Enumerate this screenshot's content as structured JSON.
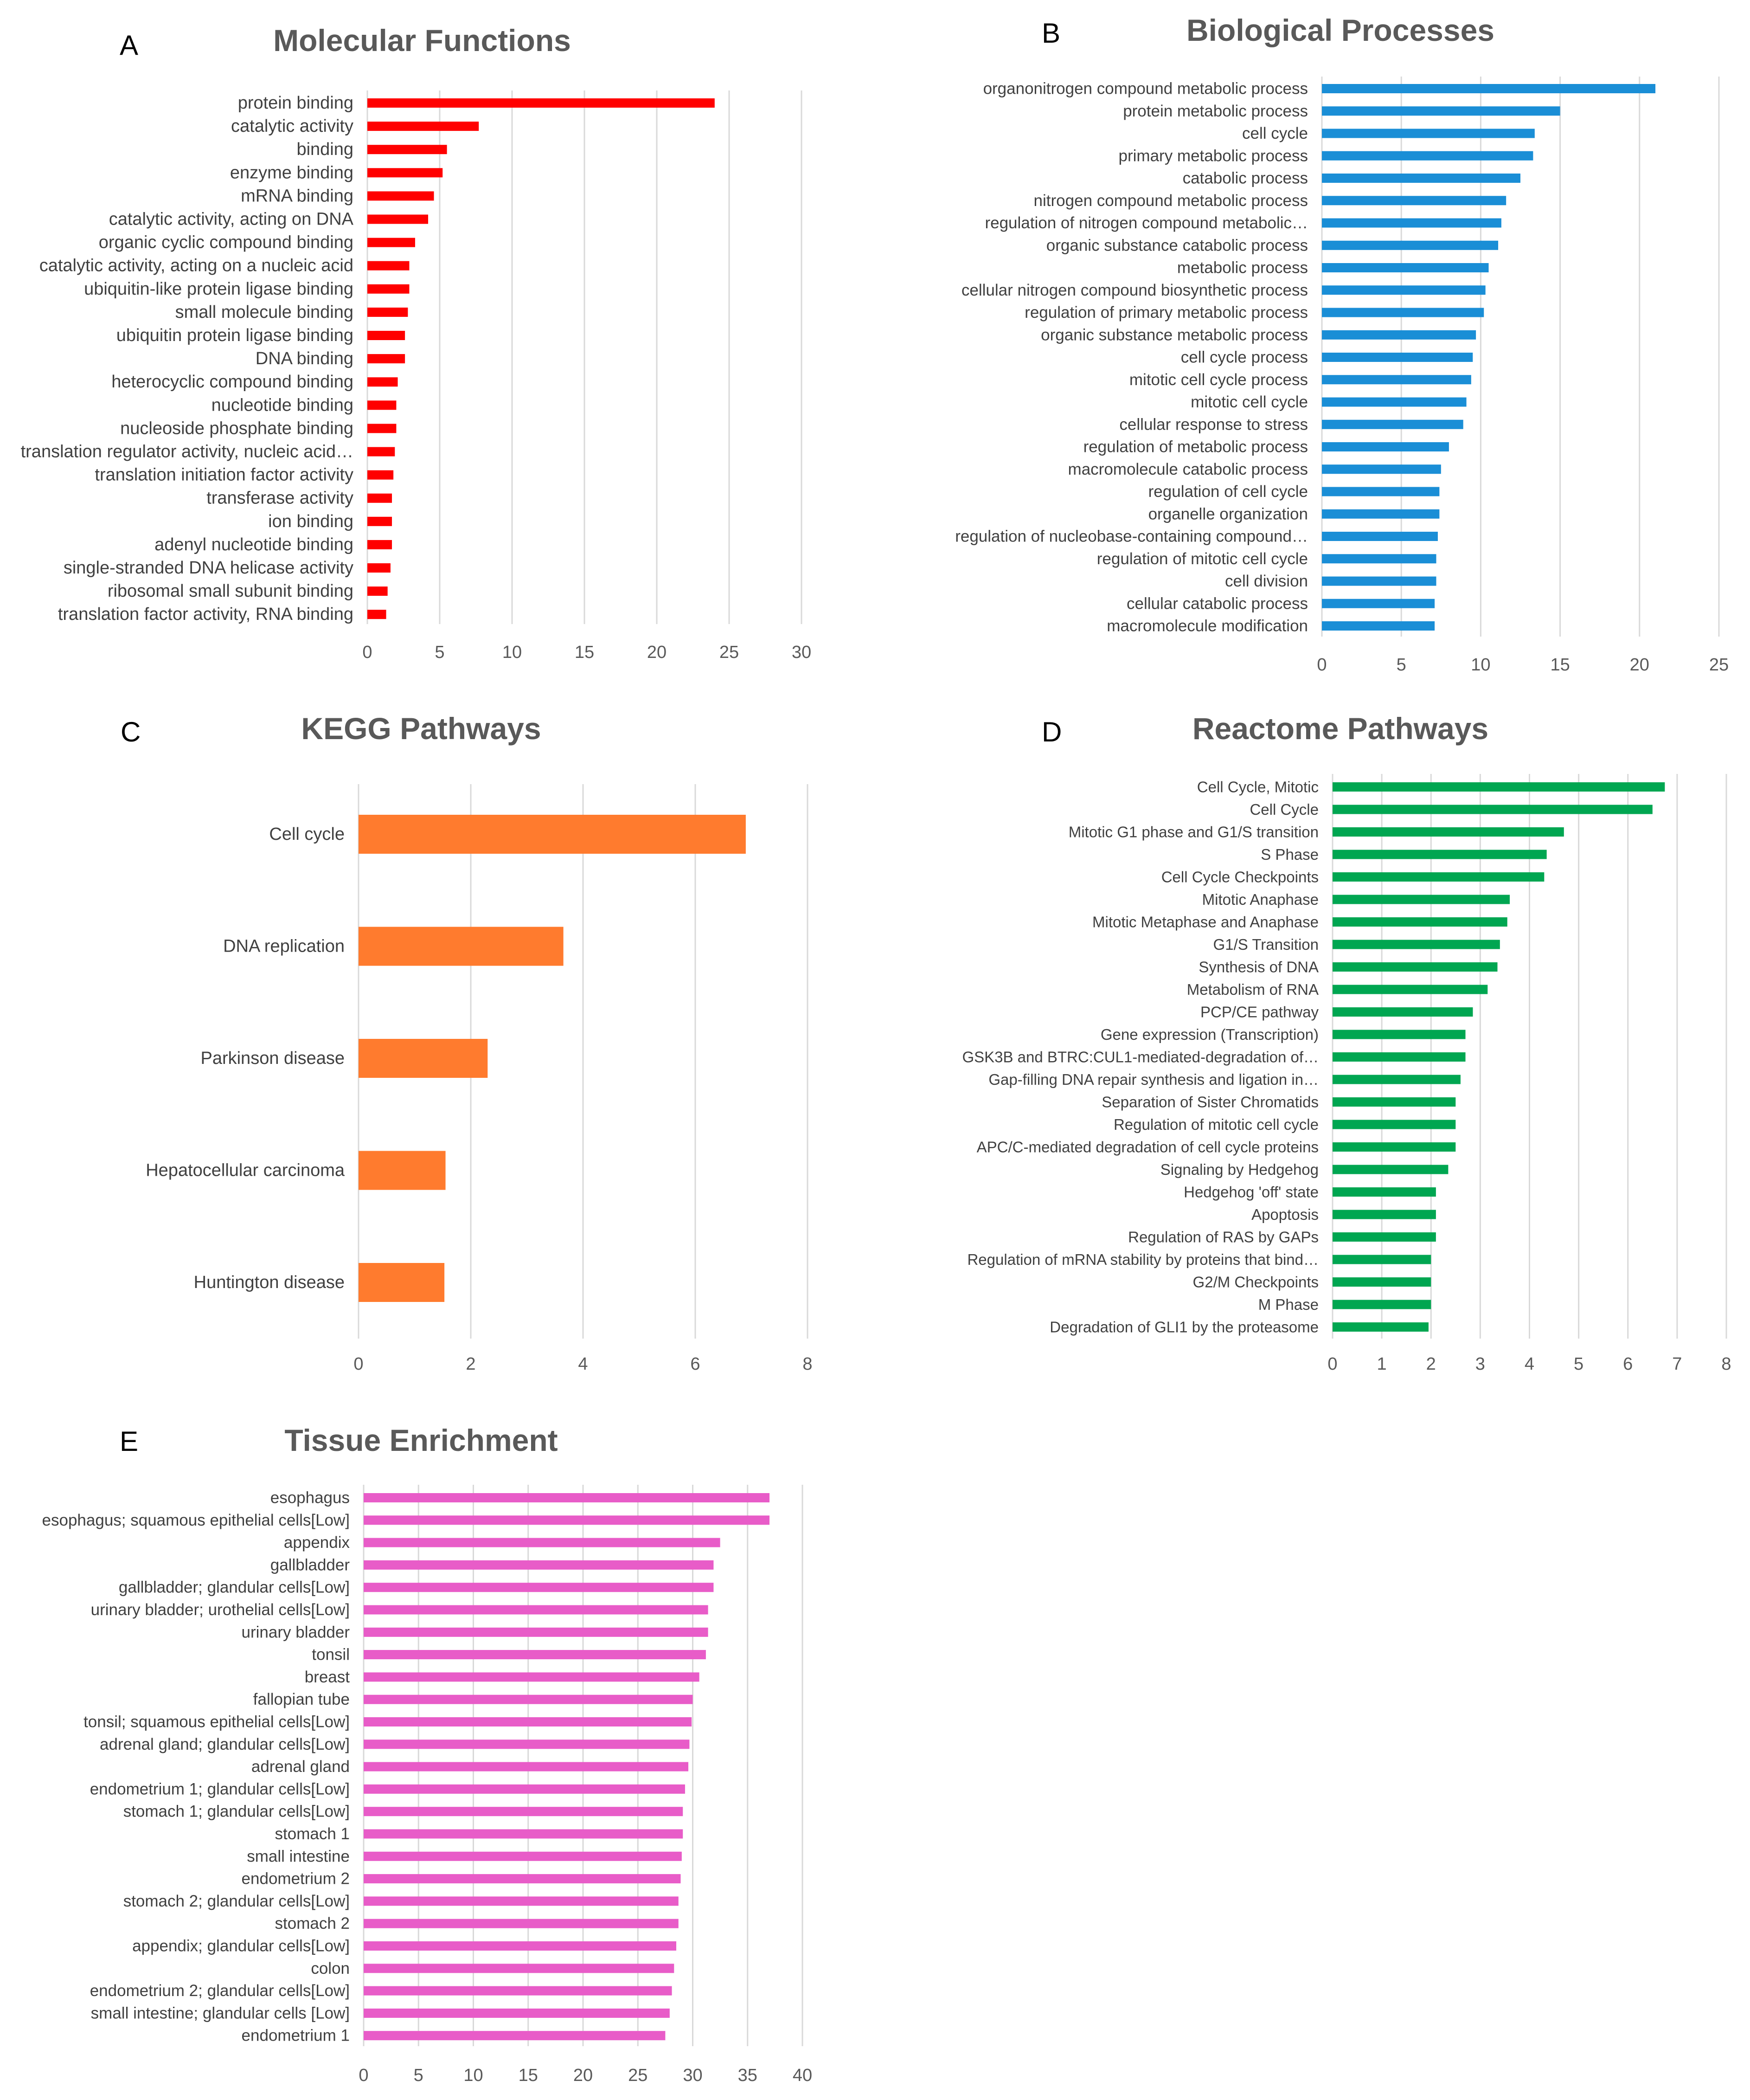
{
  "chart_data": [
    {
      "panel": "A",
      "type": "bar",
      "orientation": "horizontal",
      "title": "Molecular Functions",
      "color": "#ff0000",
      "xlim": [
        0,
        30
      ],
      "xticks": [
        0,
        5,
        10,
        15,
        20,
        25,
        30
      ],
      "grid": true,
      "categories": [
        "protein binding",
        "catalytic activity",
        "binding",
        "enzyme binding",
        "mRNA binding",
        "catalytic activity, acting on DNA",
        "organic cyclic compound binding",
        "catalytic activity, acting on a nucleic acid",
        "ubiquitin-like protein ligase binding",
        "small molecule binding",
        "ubiquitin protein ligase binding",
        "DNA binding",
        "heterocyclic compound binding",
        "nucleotide binding",
        "nucleoside phosphate binding",
        "translation regulator activity, nucleic acid…",
        "translation initiation factor activity",
        "transferase activity",
        "ion binding",
        "adenyl nucleotide binding",
        "single-stranded DNA helicase activity",
        "ribosomal small subunit binding",
        "translation factor activity, RNA binding"
      ],
      "values": [
        24.0,
        7.7,
        5.5,
        5.2,
        4.6,
        4.2,
        3.3,
        2.9,
        2.9,
        2.8,
        2.6,
        2.6,
        2.1,
        2.0,
        2.0,
        1.9,
        1.8,
        1.7,
        1.7,
        1.7,
        1.6,
        1.4,
        1.3
      ]
    },
    {
      "panel": "B",
      "type": "bar",
      "orientation": "horizontal",
      "title": "Biological Processes",
      "color": "#1a8ed6",
      "xlim": [
        0,
        25
      ],
      "xticks": [
        0,
        5,
        10,
        15,
        20,
        25
      ],
      "grid": true,
      "categories": [
        "organonitrogen compound metabolic process",
        "protein metabolic process",
        "cell cycle",
        "primary metabolic process",
        "catabolic process",
        "nitrogen compound metabolic process",
        "regulation of nitrogen compound metabolic…",
        "organic substance catabolic process",
        "metabolic process",
        "cellular nitrogen compound biosynthetic process",
        "regulation of primary metabolic process",
        "organic substance metabolic process",
        "cell cycle process",
        "mitotic cell cycle process",
        "mitotic cell cycle",
        "cellular response to stress",
        "regulation of metabolic process",
        "macromolecule catabolic process",
        "regulation of cell cycle",
        "organelle organization",
        "regulation of nucleobase-containing compound…",
        "regulation of mitotic cell cycle",
        "cell division",
        "cellular catabolic process",
        "macromolecule modification"
      ],
      "values": [
        21.0,
        15.0,
        13.4,
        13.3,
        12.5,
        11.6,
        11.3,
        11.1,
        10.5,
        10.3,
        10.2,
        9.7,
        9.5,
        9.4,
        9.1,
        8.9,
        8.0,
        7.5,
        7.4,
        7.4,
        7.3,
        7.2,
        7.2,
        7.1,
        7.1
      ]
    },
    {
      "panel": "C",
      "type": "bar",
      "orientation": "horizontal",
      "title": "KEGG Pathways",
      "color": "#ff7b2e",
      "xlim": [
        0,
        8
      ],
      "xticks": [
        0,
        2,
        4,
        6,
        8
      ],
      "grid": true,
      "categories": [
        "Cell cycle",
        "DNA replication",
        "Parkinson disease",
        "Hepatocellular carcinoma",
        "Huntington disease"
      ],
      "values": [
        6.9,
        3.65,
        2.3,
        1.55,
        1.53
      ]
    },
    {
      "panel": "D",
      "type": "bar",
      "orientation": "horizontal",
      "title": "Reactome Pathways",
      "color": "#00a651",
      "xlim": [
        0,
        8
      ],
      "xticks": [
        0,
        1,
        2,
        3,
        4,
        5,
        6,
        7,
        8
      ],
      "grid": true,
      "categories": [
        "Cell Cycle, Mitotic",
        "Cell Cycle",
        "Mitotic G1 phase and G1/S transition",
        "S Phase",
        "Cell Cycle Checkpoints",
        "Mitotic Anaphase",
        "Mitotic Metaphase and Anaphase",
        "G1/S Transition",
        "Synthesis of DNA",
        "Metabolism of RNA",
        "PCP/CE pathway",
        "Gene expression (Transcription)",
        "GSK3B and BTRC:CUL1-mediated-degradation of…",
        "Gap-filling DNA repair synthesis and ligation in…",
        "Separation of Sister Chromatids",
        "Regulation of mitotic cell cycle",
        "APC/C-mediated degradation of cell cycle proteins",
        "Signaling by Hedgehog",
        "Hedgehog 'off' state",
        "Apoptosis",
        "Regulation of RAS by GAPs",
        "Regulation of mRNA stability by proteins that bind…",
        "G2/M Checkpoints",
        "M Phase",
        "Degradation of GLI1 by the proteasome"
      ],
      "values": [
        6.75,
        6.5,
        4.7,
        4.35,
        4.3,
        3.6,
        3.55,
        3.4,
        3.35,
        3.15,
        2.85,
        2.7,
        2.7,
        2.6,
        2.5,
        2.5,
        2.5,
        2.35,
        2.1,
        2.1,
        2.1,
        2.0,
        2.0,
        2.0,
        1.95
      ]
    },
    {
      "panel": "E",
      "type": "bar",
      "orientation": "horizontal",
      "title": "Tissue Enrichment",
      "color": "#e85cc8",
      "xlim": [
        0,
        40
      ],
      "xticks": [
        0,
        5,
        10,
        15,
        20,
        25,
        30,
        35,
        40
      ],
      "grid": true,
      "categories": [
        "esophagus",
        "esophagus; squamous epithelial cells[Low]",
        "appendix",
        "gallbladder",
        "gallbladder; glandular cells[Low]",
        "urinary bladder; urothelial cells[Low]",
        "urinary bladder",
        "tonsil",
        "breast",
        "fallopian tube",
        "tonsil; squamous epithelial cells[Low]",
        "adrenal gland; glandular cells[Low]",
        "adrenal gland",
        "endometrium 1; glandular cells[Low]",
        "stomach 1; glandular cells[Low]",
        "stomach 1",
        "small intestine",
        "endometrium 2",
        "stomach 2; glandular cells[Low]",
        "stomach 2",
        "appendix; glandular cells[Low]",
        "colon",
        "endometrium 2; glandular cells[Low]",
        "small intestine; glandular cells [Low]",
        "endometrium 1"
      ],
      "values": [
        37.0,
        37.0,
        32.5,
        31.9,
        31.9,
        31.4,
        31.4,
        31.2,
        30.6,
        30.0,
        29.9,
        29.7,
        29.6,
        29.3,
        29.1,
        29.1,
        29.0,
        28.9,
        28.7,
        28.7,
        28.5,
        28.3,
        28.1,
        27.9,
        27.5
      ]
    }
  ]
}
